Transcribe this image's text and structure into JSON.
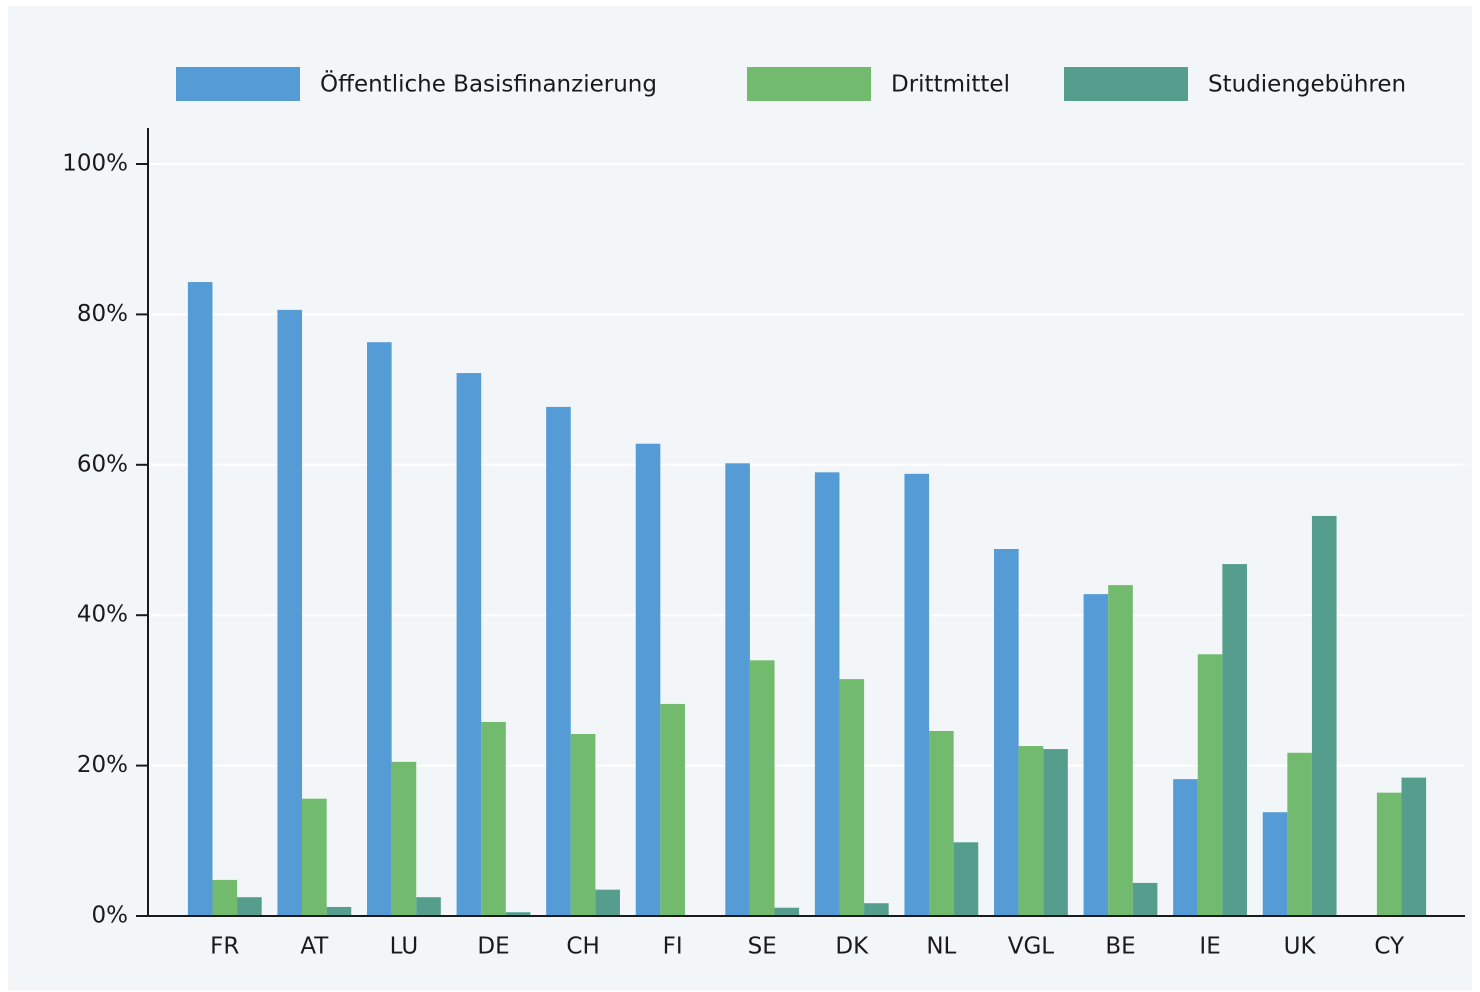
{
  "chart_data": {
    "type": "bar",
    "categories": [
      "FR",
      "AT",
      "LU",
      "DE",
      "CH",
      "FI",
      "SE",
      "DK",
      "NL",
      "VGL",
      "BE",
      "IE",
      "UK",
      "CY"
    ],
    "series": [
      {
        "name": "Öffentliche Basisfinanzierung",
        "color": "#559bd6",
        "values": [
          84.3,
          80.6,
          76.3,
          72.2,
          67.7,
          62.8,
          60.2,
          59.0,
          58.8,
          48.8,
          42.8,
          18.2,
          13.8,
          null
        ]
      },
      {
        "name": "Drittmittel",
        "color": "#72ba6d",
        "values": [
          4.8,
          15.6,
          20.5,
          25.8,
          24.2,
          28.2,
          34.0,
          31.5,
          24.6,
          22.6,
          44.0,
          34.8,
          21.7,
          16.4
        ]
      },
      {
        "name": "Studiengebühren",
        "color": "#559e8e",
        "values": [
          2.5,
          1.2,
          2.5,
          0.5,
          3.5,
          0,
          1.1,
          1.7,
          9.8,
          22.2,
          4.4,
          46.8,
          53.2,
          18.4
        ]
      }
    ],
    "ylim": [
      0,
      100
    ],
    "yticks": [
      {
        "value": 0,
        "label": "0%"
      },
      {
        "value": 20,
        "label": "20%"
      },
      {
        "value": 40,
        "label": "40%"
      },
      {
        "value": 60,
        "label": "60%"
      },
      {
        "value": 80,
        "label": "80%"
      },
      {
        "value": 100,
        "label": "100%"
      }
    ],
    "grid": true,
    "legend": "top"
  }
}
